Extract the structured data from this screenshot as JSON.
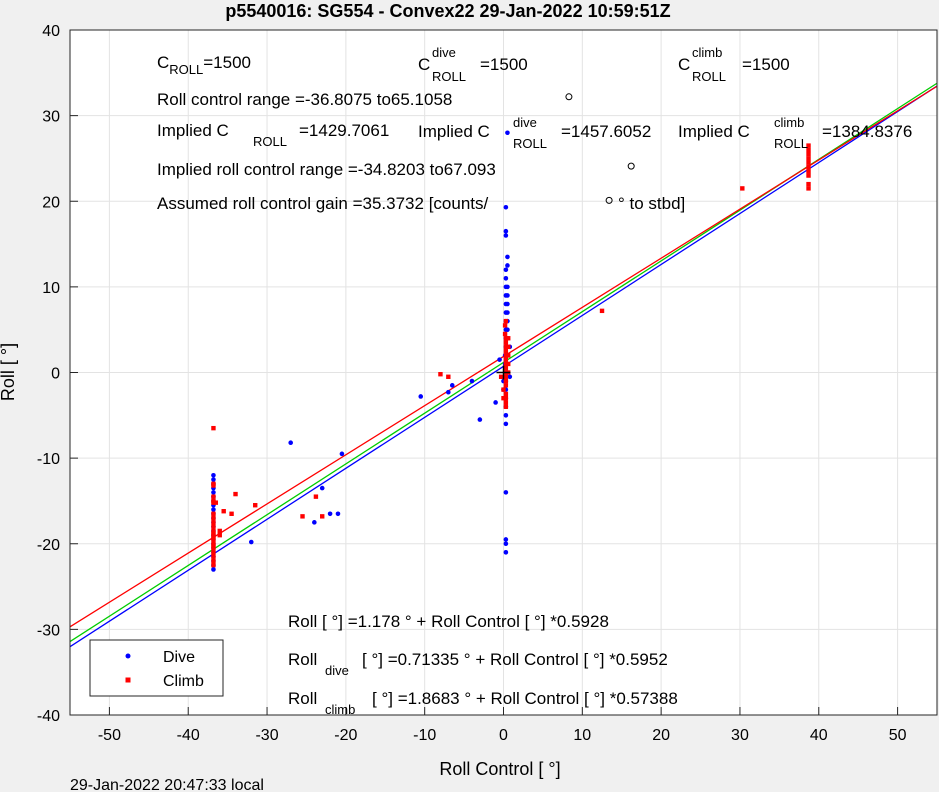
{
  "chart_data": {
    "type": "scatter",
    "title": "p5540016: SG554 - Convex22 29-Jan-2022 10:59:51Z",
    "xlabel": "Roll Control [   °]",
    "ylabel": "Roll [   °]",
    "xlim": [
      -55,
      55
    ],
    "ylim": [
      -40,
      40
    ],
    "xticks": [
      -50,
      -40,
      -30,
      -20,
      -10,
      0,
      10,
      20,
      30,
      40,
      50
    ],
    "yticks": [
      -40,
      -30,
      -20,
      -10,
      0,
      10,
      20,
      30,
      40
    ],
    "grid": true,
    "legend_position": "bottom-left",
    "footer": "29-Jan-2022 20:47:33 local",
    "colors": {
      "dive": "#0000ff",
      "climb": "#ff0000",
      "fit_all": "#00cc00"
    },
    "series": [
      {
        "name": "Dive",
        "color": "#0000ff",
        "x": [
          -36.8,
          -36.8,
          -36.8,
          -36.8,
          -36.8,
          -36.8,
          -36.8,
          -36.8,
          -36.8,
          -36.8,
          -36.8,
          -36.8,
          -36.8,
          -36.8,
          -36.8,
          -36.8,
          -36.8,
          -36.8,
          -36.8,
          -36.8,
          -36.8,
          -36.8,
          -36.8,
          -32,
          -27,
          -24,
          -23,
          -22,
          -21,
          -20.5,
          -10.5,
          -7,
          -6.5,
          -4,
          -3,
          -1,
          -0.5,
          0,
          0,
          0.2,
          0.2,
          0.3,
          0.3,
          0.3,
          0.3,
          0.3,
          0.3,
          0.3,
          0.3,
          0.3,
          0.3,
          0.3,
          0.3,
          0.3,
          0.3,
          0.3,
          0.3,
          0.3,
          0.3,
          0.3,
          0.3,
          0.3,
          0.3,
          0.3,
          0.3,
          0.3,
          0.5,
          0.5,
          0.5,
          0.5,
          0.5,
          0.5,
          0.5,
          0.5,
          0.5,
          0.5,
          0.5,
          0.8,
          0.8
        ],
        "y": [
          -23,
          -22.5,
          -22,
          -21.5,
          -21,
          -20.5,
          -20,
          -19.5,
          -19,
          -18.5,
          -18,
          -17.5,
          -17,
          -16.5,
          -16,
          -15.5,
          -15,
          -14.5,
          -14,
          -13.5,
          -13,
          -12.5,
          -12,
          -19.8,
          -8.2,
          -17.5,
          -13.5,
          -16.5,
          -16.5,
          -9.5,
          -2.8,
          -2.3,
          -1.5,
          -1,
          -5.5,
          -3.5,
          1.5,
          -2,
          -1,
          2,
          1,
          12,
          11,
          10,
          9,
          8,
          7,
          6,
          5,
          4,
          3,
          2,
          0,
          -1,
          -2,
          -3,
          -4,
          -5,
          -6,
          -14,
          -20,
          -21,
          -19.5,
          16,
          16.5,
          19.3,
          13.5,
          12.5,
          10,
          9,
          8,
          7,
          6,
          5,
          4,
          2,
          28,
          3,
          -0.5
        ]
      },
      {
        "name": "Climb",
        "color": "#ff0000",
        "x": [
          -36.8,
          -36.8,
          -36.8,
          -36.8,
          -36.8,
          -36.8,
          -36.8,
          -36.8,
          -36.8,
          -36.8,
          -36.8,
          -36.8,
          -36.8,
          -36.8,
          -36.8,
          -36.8,
          -36.8,
          -36.8,
          -36.8,
          -36.8,
          -36.8,
          -36.8,
          -36.5,
          -36,
          -36,
          -35.5,
          -34,
          -34.5,
          -31.5,
          -25.5,
          -23.8,
          -23,
          -8,
          -7,
          -0.3,
          0,
          0,
          0.2,
          0.2,
          0.3,
          0.3,
          0.3,
          0.3,
          0.3,
          0.3,
          0.3,
          0.3,
          0.3,
          0.3,
          0.3,
          0.3,
          0.3,
          0.3,
          0.3,
          0.3,
          0.3,
          0.6,
          0.6,
          0.6,
          0.6,
          0.6,
          12.5,
          30.3,
          38.7,
          38.7,
          38.7,
          38.7,
          38.7,
          38.7,
          38.7,
          38.7,
          38.7,
          38.7
        ],
        "y": [
          -6.5,
          -13,
          -13.2,
          -14.5,
          -15,
          -15.2,
          -17,
          -18,
          -18.5,
          -19,
          -19.5,
          -20,
          -20.5,
          -21,
          -21.5,
          -22,
          -22.5,
          -16.5,
          -17.5,
          -18.8,
          -19.2,
          -20.2,
          -15.2,
          -18.5,
          -19,
          -16.2,
          -14.2,
          -16.5,
          -15.5,
          -16.8,
          -14.5,
          -16.8,
          -0.2,
          -0.5,
          -0.5,
          -2,
          -3,
          4.5,
          5.5,
          0,
          0.5,
          1,
          1.5,
          2,
          2.5,
          3,
          3.5,
          4,
          -1,
          -1.5,
          -2.5,
          -3.5,
          -4,
          6,
          -0.5,
          -3,
          0,
          1,
          2,
          3,
          4,
          7.2,
          21.5,
          21.5,
          22,
          23,
          23.5,
          24,
          24.5,
          25,
          25.5,
          26,
          26.5
        ]
      }
    ],
    "fits": [
      {
        "name": "all",
        "color": "#00cc00",
        "intercept": 1.178,
        "slope": 0.5928
      },
      {
        "name": "dive",
        "color": "#0000ff",
        "intercept": 0.71335,
        "slope": 0.5952
      },
      {
        "name": "climb",
        "color": "#ff0000",
        "intercept": 1.8683,
        "slope": 0.57388
      }
    ],
    "circle_markers": [
      {
        "x": 8.3,
        "y": 32.2
      },
      {
        "x": 16.2,
        "y": 24.1
      },
      {
        "x": 13.4,
        "y": 20.1
      }
    ],
    "cross_marker": {
      "x": 0,
      "y": 0
    },
    "annotations": {
      "c_roll": {
        "base": "C",
        "sub": "ROLL",
        "value": "=1500"
      },
      "c_roll_dive": {
        "base": "C",
        "sup": "dive",
        "sub": "ROLL",
        "value": "=1500"
      },
      "c_roll_climb": {
        "base": "C",
        "sup": "climb",
        "sub": "ROLL",
        "value": "=1500"
      },
      "roll_control_range": "Roll control range =-36.8075 to65.1058",
      "implied_c": {
        "prefix": "Implied C",
        "sub": "ROLL",
        "value": "=1429.7061"
      },
      "implied_c_dive": {
        "prefix": "Implied C",
        "sup": "dive",
        "sub": "ROLL",
        "value": "=1457.6052"
      },
      "implied_c_climb": {
        "prefix": "Implied C",
        "sup": "climb",
        "sub": "ROLL",
        "value": "=1384.8376"
      },
      "implied_range": "Implied roll control range =-34.8203 to67.093",
      "gain": "Assumed roll control gain =35.3732 [counts/",
      "gain_tail": "° to stbd]",
      "eq_all": "Roll [  °] =1.178    ° + Roll Control [     °] *0.5928",
      "eq_dive_base": "Roll",
      "eq_dive_sub": "dive",
      "eq_dive_rest": "[  °] =0.71335     ° + Roll Control [     °] *0.5952",
      "eq_climb_base": "Roll",
      "eq_climb_sub": "climb",
      "eq_climb_rest": "[  °] =1.8683     ° + Roll Control [     °] *0.57388"
    },
    "legend": {
      "dive": "Dive",
      "climb": "Climb"
    }
  }
}
